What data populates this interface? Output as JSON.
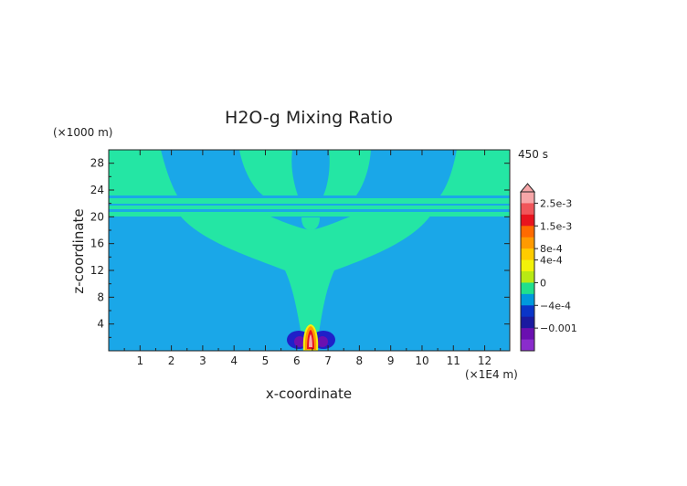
{
  "chart_data": {
    "type": "heatmap",
    "title": "H2O-g Mixing Ratio",
    "xlabel": "x-coordinate",
    "ylabel": "z-coordinate",
    "x_unit": "(×1E4 m)",
    "y_unit": "(×1000 m)",
    "time_label": "450 s",
    "xlim": [
      0,
      12.8
    ],
    "ylim": [
      0,
      30
    ],
    "x_ticks": [
      "1",
      "2",
      "3",
      "4",
      "5",
      "6",
      "7",
      "8",
      "9",
      "10",
      "11",
      "12"
    ],
    "y_ticks": [
      "4",
      "8",
      "12",
      "16",
      "20",
      "24",
      "28"
    ],
    "colorbar": {
      "labels": [
        "2.5e-3",
        "1.5e-3",
        "8e-4",
        "4e-4",
        "0",
        "−4e-4",
        "−0.001"
      ],
      "colors": [
        "#f7a6a8",
        "#f0565a",
        "#e8141e",
        "#ff6a00",
        "#ff9a00",
        "#ffcc00",
        "#f2f20a",
        "#b8ea14",
        "#20e08c",
        "#0099dd",
        "#0a35c8",
        "#1a1aa0",
        "#6a10b0",
        "#8a2ccc"
      ],
      "colors_order": "top-to-bottom"
    },
    "field_description_colors": {
      "background": "#1aa7e8",
      "plume": "#24e6a4",
      "positive_core": "#e81c1c",
      "negative_lobes": "#1f20c8"
    }
  }
}
